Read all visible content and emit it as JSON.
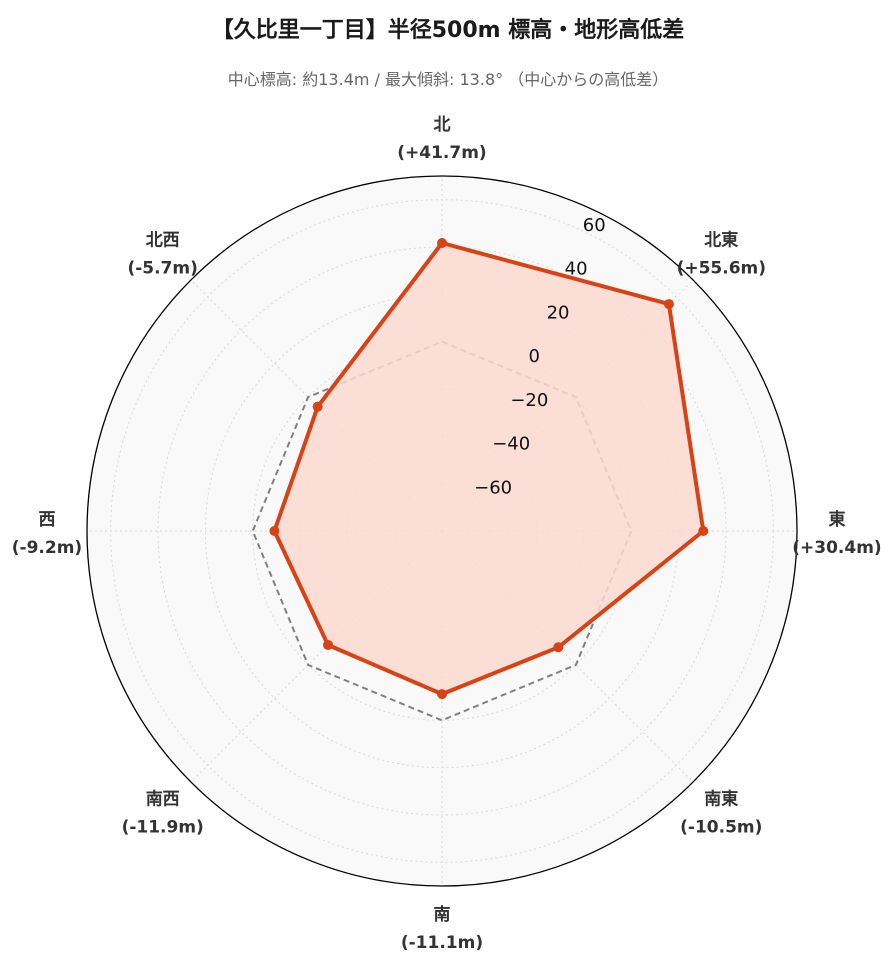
{
  "title": "【久比里一丁目】半径500m 標高・地形高低差",
  "subtitle": "中心標高: 約13.4m / 最大傾斜: 13.8° （中心からの高低差）",
  "chart_data": {
    "type": "radar",
    "categories": [
      "北",
      "北東",
      "東",
      "南東",
      "南",
      "南西",
      "西",
      "北西"
    ],
    "category_values": [
      "(+41.7m)",
      "(+55.6m)",
      "(+30.4m)",
      "(-10.5m)",
      "(-11.1m)",
      "(-11.9m)",
      "(-9.2m)",
      "(-5.7m)"
    ],
    "series": [
      {
        "values": [
          41.7,
          55.6,
          30.4,
          -10.5,
          -11.1,
          -11.9,
          -9.2,
          -5.7
        ],
        "color": "#d84315",
        "fill": "#fcd9cf",
        "style": "solid"
      },
      {
        "values": [
          0,
          0,
          0,
          0,
          0,
          0,
          0,
          0
        ],
        "color": "#808080",
        "style": "dashed"
      }
    ],
    "rlim": [
      -80,
      70
    ],
    "rticks": [
      -60,
      -40,
      -20,
      0,
      20,
      40,
      60
    ],
    "rtick_labels": [
      "−60",
      "−40",
      "−20",
      "0",
      "20",
      "40",
      "60"
    ],
    "grid": true
  }
}
